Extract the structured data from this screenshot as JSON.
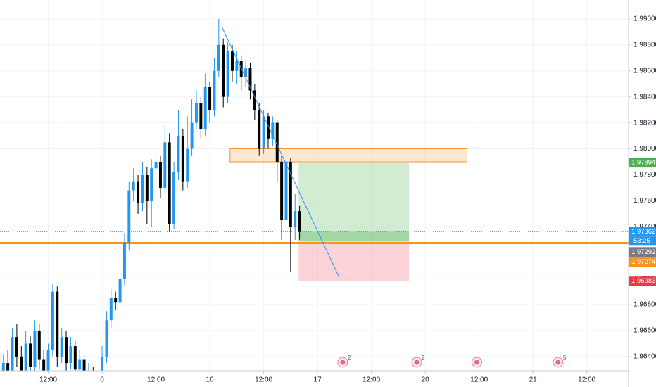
{
  "chart_data": {
    "type": "candlestick",
    "x": [
      -22,
      -21,
      -20,
      -19,
      -18,
      -17,
      -16,
      -15,
      -14,
      -13,
      -12,
      -11,
      -10,
      -9,
      -8,
      -7,
      -6,
      -5,
      -4,
      -3,
      -2,
      -1,
      0,
      1,
      2,
      3,
      4,
      5,
      6,
      7,
      8,
      9,
      10,
      11,
      12,
      13,
      14,
      15,
      16,
      17,
      18,
      19,
      20,
      21,
      22,
      23,
      24,
      25,
      26,
      27,
      28,
      29,
      30,
      31,
      32,
      33,
      34,
      35,
      36,
      37,
      38,
      39,
      40,
      41,
      42,
      43,
      44
    ],
    "open": [
      1.9622,
      1.9635,
      1.9628,
      1.9655,
      1.964,
      1.9625,
      1.965,
      1.9632,
      1.966,
      1.9638,
      1.9628,
      1.9645,
      1.969,
      1.964,
      1.9655,
      1.9635,
      1.9648,
      1.963,
      1.9638,
      1.962,
      1.9628,
      1.9615,
      1.961,
      1.964,
      1.9668,
      1.9685,
      1.9682,
      1.97,
      1.9728,
      1.9768,
      1.9775,
      1.9758,
      1.978,
      1.976,
      1.9785,
      1.979,
      1.977,
      1.9805,
      1.9742,
      1.9782,
      1.981,
      1.9775,
      1.98,
      1.982,
      1.9835,
      1.9815,
      1.9848,
      1.983,
      1.986,
      1.988,
      1.984,
      1.9875,
      1.986,
      1.9868,
      1.9855,
      1.9862,
      1.9845,
      1.983,
      1.98,
      1.9825,
      1.9808,
      1.982,
      1.979,
      1.9745,
      1.979,
      1.974,
      1.9752
    ],
    "high": [
      1.9642,
      1.9645,
      1.9662,
      1.9665,
      1.9648,
      1.966,
      1.9656,
      1.9668,
      1.9665,
      1.9645,
      1.965,
      1.9696,
      1.9694,
      1.9662,
      1.966,
      1.9655,
      1.9652,
      1.9645,
      1.9642,
      1.9635,
      1.9632,
      1.962,
      1.9648,
      1.9675,
      1.9692,
      1.969,
      1.9708,
      1.9735,
      1.9775,
      1.9785,
      1.978,
      1.979,
      1.9786,
      1.9792,
      1.9796,
      1.9795,
      1.9818,
      1.9812,
      1.979,
      1.983,
      1.9815,
      1.9825,
      1.9838,
      1.9845,
      1.984,
      1.9858,
      1.9852,
      1.987,
      1.99,
      1.9885,
      1.9882,
      1.988,
      1.9875,
      1.9872,
      1.9868,
      1.9866,
      1.985,
      1.9835,
      1.983,
      1.9828,
      1.9825,
      1.9822,
      1.9795,
      1.9795,
      1.9793,
      1.9765,
      1.9756
    ],
    "low": [
      1.9612,
      1.9618,
      1.962,
      1.9632,
      1.9615,
      1.9618,
      1.9622,
      1.9626,
      1.963,
      1.9618,
      1.962,
      1.964,
      1.9632,
      1.9635,
      1.9628,
      1.963,
      1.9622,
      1.9625,
      1.9612,
      1.9614,
      1.9608,
      1.9604,
      1.9605,
      1.9635,
      1.9662,
      1.9676,
      1.9678,
      1.9695,
      1.9722,
      1.976,
      1.975,
      1.9752,
      1.9742,
      1.974,
      1.9775,
      1.9762,
      1.9765,
      1.9736,
      1.9738,
      1.9776,
      1.9768,
      1.977,
      1.9795,
      1.9815,
      1.9808,
      1.981,
      1.982,
      1.9825,
      1.9855,
      1.9832,
      1.9835,
      1.9852,
      1.985,
      1.9845,
      1.9848,
      1.9838,
      1.9822,
      1.9795,
      1.9796,
      1.98,
      1.9802,
      1.9775,
      1.973,
      1.9728,
      1.9705,
      1.973,
      1.973
    ],
    "close": [
      1.9635,
      1.9628,
      1.9655,
      1.964,
      1.9625,
      1.965,
      1.9632,
      1.966,
      1.9638,
      1.9628,
      1.9645,
      1.969,
      1.964,
      1.9655,
      1.9635,
      1.9648,
      1.963,
      1.9638,
      1.962,
      1.9628,
      1.9615,
      1.961,
      1.964,
      1.9668,
      1.9685,
      1.9682,
      1.97,
      1.9728,
      1.9768,
      1.9775,
      1.9758,
      1.978,
      1.976,
      1.9785,
      1.979,
      1.977,
      1.9805,
      1.9742,
      1.9782,
      1.981,
      1.9775,
      1.98,
      1.982,
      1.9835,
      1.9815,
      1.9848,
      1.983,
      1.986,
      1.988,
      1.984,
      1.9875,
      1.986,
      1.9868,
      1.9855,
      1.9862,
      1.9845,
      1.983,
      1.98,
      1.9825,
      1.9808,
      1.982,
      1.979,
      1.9745,
      1.979,
      1.974,
      1.9752,
      1.9736
    ],
    "up_color": "#2196f3",
    "down_color": "#000000",
    "xlim": [
      -22.75,
      117.3
    ],
    "ylim": [
      1.96291,
      1.99146
    ],
    "xticks": [
      {
        "value": -12,
        "label": "12:00"
      },
      0,
      {
        "value": 12,
        "label": "12:00"
      },
      16,
      {
        "value": 36,
        "label": "12:00"
      },
      17,
      {
        "value": 60,
        "label": "12:00"
      },
      20,
      {
        "value": 84,
        "label": "12:00"
      },
      21,
      {
        "value": 108,
        "label": "12:00"
      }
    ],
    "xticks_hours": [
      -12,
      0,
      12,
      24,
      36,
      48,
      60,
      72,
      84,
      96,
      108
    ],
    "yticks": [
      {
        "value": 1.964,
        "label": "1.96400"
      },
      {
        "value": 1.966,
        "label": "1.96600"
      },
      {
        "value": 1.968,
        "label": "1.96800"
      },
      {
        "value": 1.97,
        "label": "1.97000"
      },
      {
        "value": 1.972,
        "label": "1.97200"
      },
      {
        "value": 1.974,
        "label": "1.97400"
      },
      {
        "value": 1.976,
        "label": "1.97600"
      },
      {
        "value": 1.978,
        "label": "1.97800"
      },
      {
        "value": 1.98,
        "label": "1.98000"
      },
      {
        "value": 1.982,
        "label": "1.98200"
      },
      {
        "value": 1.984,
        "label": "1.98400"
      },
      {
        "value": 1.986,
        "label": "1.98600"
      },
      {
        "value": 1.988,
        "label": "1.98800"
      },
      {
        "value": 1.99,
        "label": "1.99000"
      }
    ],
    "grid": true,
    "horizontal_line": {
      "value": 1.97274,
      "color": "#f7931e"
    },
    "last_price_line": {
      "value": 1.97362,
      "color": "#2196f3"
    },
    "zone": {
      "x": [
        28.5,
        81.3
      ],
      "y": [
        1.979,
        1.98
      ],
      "color": "#f7931e"
    },
    "position": {
      "x": [
        43.8,
        68.4
      ],
      "entry": 1.97292,
      "target": 1.97894,
      "stop": 1.96983
    },
    "trendline": {
      "x": [
        26.8,
        52.7
      ],
      "y": [
        1.9893,
        1.9702
      ],
      "color": "#2196f3"
    },
    "price_labels": [
      {
        "value": 1.97894,
        "color": "#4caf50"
      },
      {
        "value": 1.97362,
        "color": "#2196f3"
      },
      {
        "value": 1.97292,
        "color": "#787b86"
      },
      {
        "value": 1.97274,
        "color": "#f7931e"
      },
      {
        "value": 1.96983,
        "color": "#f23645"
      }
    ],
    "countdown": "53:25",
    "events": [
      {
        "x": 53.6,
        "count": 2
      },
      {
        "x": 70.1,
        "count": 2
      },
      {
        "x": 83.5
      },
      {
        "x": 101.6,
        "count": 5
      }
    ]
  }
}
